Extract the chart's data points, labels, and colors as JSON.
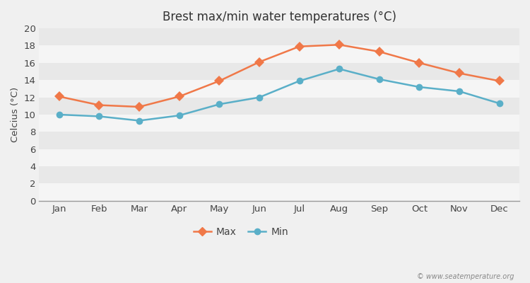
{
  "title": "Brest max/min water temperatures (°C)",
  "ylabel": "Celcius (°C)",
  "months": [
    "Jan",
    "Feb",
    "Mar",
    "Apr",
    "May",
    "Jun",
    "Jul",
    "Aug",
    "Sep",
    "Oct",
    "Nov",
    "Dec"
  ],
  "max_temps": [
    12.1,
    11.1,
    10.9,
    12.1,
    13.9,
    16.1,
    17.9,
    18.1,
    17.3,
    16.0,
    14.8,
    13.9
  ],
  "min_temps": [
    10.0,
    9.8,
    9.3,
    9.9,
    11.2,
    12.0,
    13.9,
    15.3,
    14.1,
    13.2,
    12.7,
    11.3
  ],
  "max_color": "#f07848",
  "min_color": "#5aafc8",
  "bg_color": "#f0f0f0",
  "band_light": "#f5f5f5",
  "band_dark": "#e8e8e8",
  "ylim": [
    0,
    20
  ],
  "yticks": [
    0,
    2,
    4,
    6,
    8,
    10,
    12,
    14,
    16,
    18,
    20
  ],
  "watermark": "© www.seatemperature.org",
  "legend_max": "Max",
  "legend_min": "Min"
}
